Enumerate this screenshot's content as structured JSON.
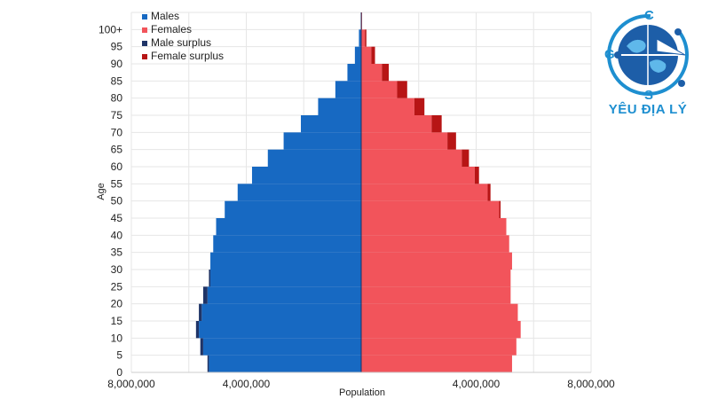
{
  "chart_data": {
    "type": "bar",
    "orientation": "horizontal-population-pyramid",
    "ylabel": "Age",
    "xlabel": "Population",
    "y_ticks": [
      "0",
      "5",
      "10",
      "15",
      "20",
      "25",
      "30",
      "35",
      "40",
      "45",
      "50",
      "55",
      "60",
      "65",
      "70",
      "75",
      "80",
      "85",
      "90",
      "95",
      "100+"
    ],
    "x_ticks": [
      "8,000,000",
      "4,000,000",
      "4,000,000",
      "8,000,000"
    ],
    "xlim": [
      -8000000,
      8000000
    ],
    "grid": true,
    "legend_position": "top-left",
    "age_groups": [
      "0",
      "5",
      "10",
      "15",
      "20",
      "25",
      "30",
      "35",
      "40",
      "45",
      "50",
      "55",
      "60",
      "65",
      "70",
      "75",
      "80",
      "85",
      "90",
      "95",
      "100+"
    ],
    "series": [
      {
        "name": "Males",
        "color": "#1769c2",
        "values": [
          5300000,
          5500000,
          5650000,
          5550000,
          5350000,
          5250000,
          5250000,
          5150000,
          5050000,
          4750000,
          4300000,
          3800000,
          3250000,
          2700000,
          2100000,
          1500000,
          900000,
          480000,
          220000,
          80000,
          10000
        ]
      },
      {
        "name": "Females",
        "color": "#f2545b",
        "values": [
          5250000,
          5400000,
          5550000,
          5450000,
          5200000,
          5200000,
          5250000,
          5150000,
          5050000,
          4800000,
          4400000,
          3950000,
          3500000,
          3000000,
          2450000,
          1850000,
          1250000,
          720000,
          350000,
          130000,
          20000
        ]
      },
      {
        "name": "Male surplus",
        "color": "#1f3467",
        "values": [
          50000,
          100000,
          100000,
          100000,
          150000,
          50000,
          0,
          0,
          0,
          0,
          0,
          0,
          0,
          0,
          0,
          0,
          0,
          0,
          0,
          0,
          0
        ]
      },
      {
        "name": "Female surplus",
        "color": "#b71515",
        "values": [
          0,
          0,
          0,
          0,
          0,
          0,
          0,
          0,
          0,
          50000,
          100000,
          150000,
          250000,
          300000,
          350000,
          350000,
          350000,
          240000,
          130000,
          50000,
          10000
        ]
      }
    ]
  },
  "logo": {
    "text": "YÊU ĐỊA LÝ",
    "compass_letters": [
      "C",
      "G",
      "S"
    ]
  }
}
